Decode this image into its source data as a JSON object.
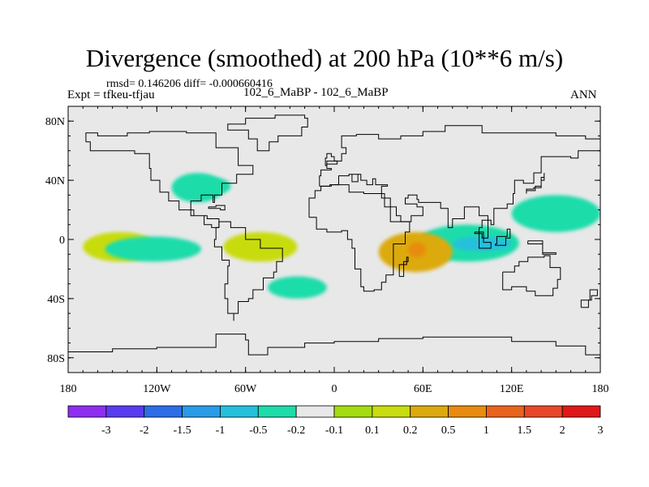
{
  "title": "Divergence (smoothed) at 200 hPa (10**6 m/s)",
  "stats": "rmsd= 0.146206 diff= -0.000660416",
  "experiment": "Expt = tfkeu-tfjau",
  "difference_case": "102_6_MaBP - 102_6_MaBP",
  "season": "ANN",
  "colors": {
    "background_field": "#e8e8e8",
    "coastline": "#000000",
    "palette": [
      "#8f2ef0",
      "#5a3cf0",
      "#2d6ee8",
      "#2a9be6",
      "#25c0dc",
      "#1ddcaa",
      "#e8e8e8",
      "#a4dc12",
      "#c8dc10",
      "#dcaa10",
      "#e88c10",
      "#e8641e",
      "#e84828",
      "#e01818"
    ]
  },
  "axes": {
    "x_ticks": [
      "180",
      "120W",
      "60W",
      "0",
      "60E",
      "120E",
      "180"
    ],
    "y_ticks": [
      "80N",
      "40N",
      "0",
      "40S",
      "80S"
    ]
  },
  "colorbar": {
    "labels": [
      "-3",
      "-2",
      "-1.5",
      "-1",
      "-0.5",
      "-0.2",
      "-0.1",
      "0.1",
      "0.2",
      "0.5",
      "1",
      "1.5",
      "2",
      "3"
    ]
  },
  "chart_data": {
    "type": "heatmap",
    "title": "Divergence (smoothed) at 200 hPa (10**6 m/s)",
    "xlabel": "",
    "ylabel": "",
    "xlim": [
      -180,
      180
    ],
    "ylim": [
      -90,
      90
    ],
    "levels": [
      -3,
      -2,
      -1.5,
      -1,
      -0.5,
      -0.2,
      -0.1,
      0.1,
      0.2,
      0.5,
      1,
      1.5,
      2,
      3
    ],
    "x_tick_values": [
      -180,
      -120,
      -60,
      0,
      60,
      120,
      180
    ],
    "y_tick_values": [
      80,
      40,
      0,
      -40,
      -80
    ],
    "features": [
      {
        "lon": [
          55,
          125
        ],
        "lat": [
          -15,
          10
        ],
        "value": -0.4
      },
      {
        "lon": [
          80,
          120
        ],
        "lat": [
          -8,
          2
        ],
        "value": -0.8
      },
      {
        "lon": [
          30,
          80
        ],
        "lat": [
          -22,
          5
        ],
        "value": 0.35
      },
      {
        "lon": [
          50,
          62
        ],
        "lat": [
          -12,
          -2
        ],
        "value": 0.6
      },
      {
        "lon": [
          -75,
          -25
        ],
        "lat": [
          -15,
          5
        ],
        "value": 0.2
      },
      {
        "lon": [
          -170,
          -120
        ],
        "lat": [
          -15,
          5
        ],
        "value": 0.15
      },
      {
        "lon": [
          -155,
          -90
        ],
        "lat": [
          -15,
          2
        ],
        "value": -0.25
      },
      {
        "lon": [
          -45,
          -5
        ],
        "lat": [
          -40,
          -25
        ],
        "value": -0.3
      },
      {
        "lon": [
          120,
          180
        ],
        "lat": [
          5,
          30
        ],
        "value": -0.2
      },
      {
        "lon": [
          -110,
          -75
        ],
        "lat": [
          25,
          45
        ],
        "value": -0.2
      },
      {
        "lon": [
          -95,
          -70
        ],
        "lat": [
          30,
          42
        ],
        "value": -0.4
      }
    ]
  }
}
